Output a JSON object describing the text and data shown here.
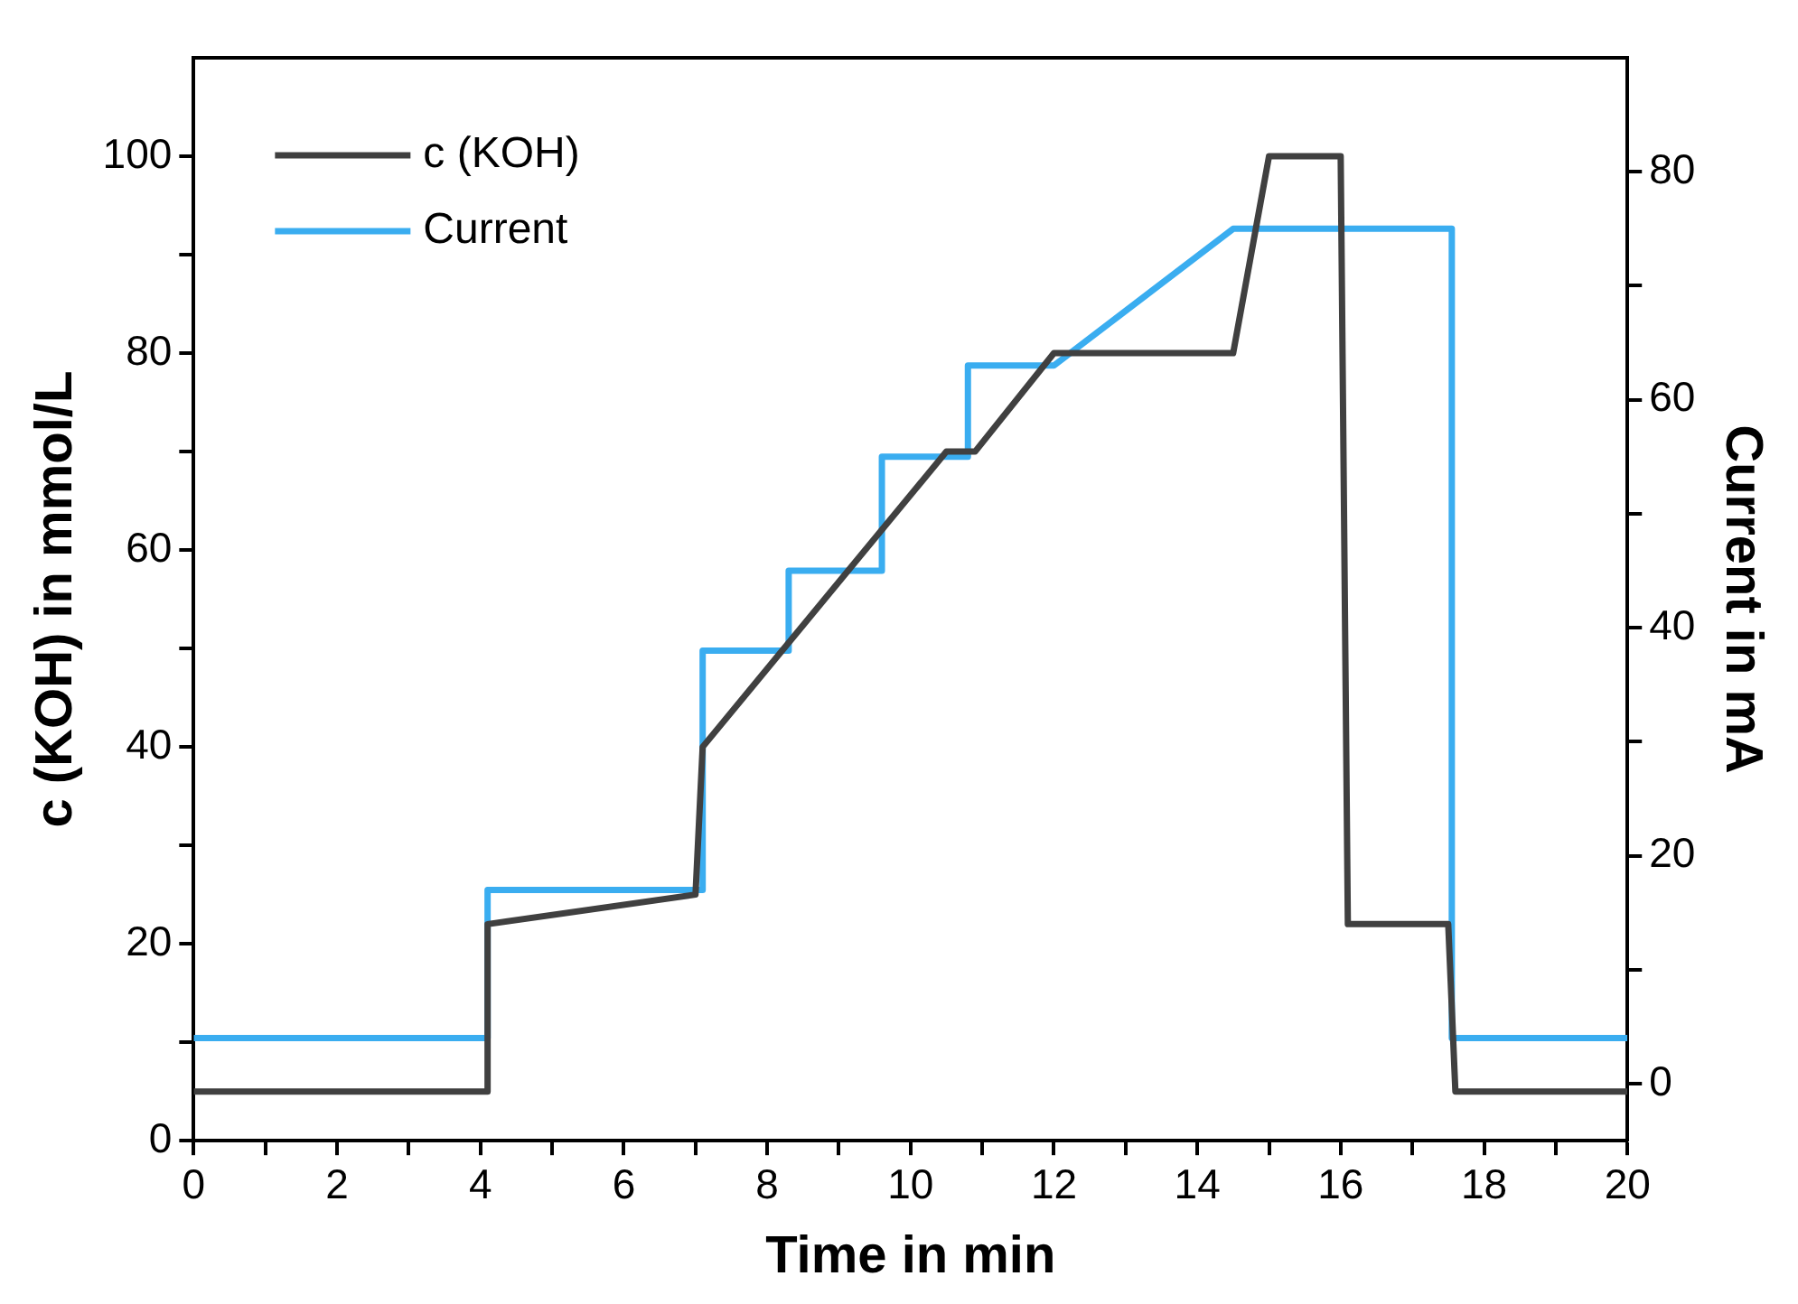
{
  "chart_data": {
    "type": "line",
    "xlabel": "Time in min",
    "ylabel": "c (KOH) in mmol/L",
    "y2label": "Current in mA",
    "xlim": [
      0,
      20
    ],
    "xticks": [
      0,
      {
        "value": 1,
        "label": null
      },
      2,
      {
        "value": 3,
        "label": null
      },
      4,
      {
        "value": 5,
        "label": null
      },
      6,
      {
        "value": 7,
        "label": null
      },
      8,
      {
        "value": 9,
        "label": null
      },
      10,
      {
        "value": 11,
        "label": null
      },
      12,
      {
        "value": 13,
        "label": null
      },
      14,
      {
        "value": 15,
        "label": null
      },
      16,
      {
        "value": 17,
        "label": null
      },
      18,
      {
        "value": 19,
        "label": null
      },
      20
    ],
    "ylim": [
      0,
      110
    ],
    "yticks": [
      0,
      {
        "value": 10,
        "label": null
      },
      20,
      {
        "value": 30,
        "label": null
      },
      40,
      {
        "value": 50,
        "label": null
      },
      60,
      {
        "value": 70,
        "label": null
      },
      80,
      {
        "value": 90,
        "label": null
      },
      100
    ],
    "y2lim": [
      -5,
      90
    ],
    "y2ticks": [
      0,
      {
        "value": 10,
        "label": null
      },
      20,
      {
        "value": 30,
        "label": null
      },
      40,
      {
        "value": 50,
        "label": null
      },
      60,
      {
        "value": 70,
        "label": null
      },
      80
    ],
    "grid": false,
    "legend": "top left",
    "marker": "none",
    "line_style": "solid",
    "series": [
      {
        "name": "c (KOH)",
        "color": "#404040",
        "x": [
          0,
          4.1,
          4.1,
          7,
          7.1,
          10.5,
          10.9,
          12,
          14.5,
          15,
          16,
          16.1,
          17.5,
          17.6,
          20
        ],
        "values": [
          5,
          5,
          22,
          25,
          40,
          70,
          70,
          80,
          80,
          100,
          100,
          22,
          22,
          5,
          5
        ]
      },
      {
        "name": "Current",
        "color": "#3aadf0",
        "axis": "y2",
        "x": [
          0,
          4.1,
          4.1,
          7.1,
          7.1,
          8.3,
          8.3,
          9.6,
          9.6,
          10.8,
          10.8,
          12,
          14.5,
          17.55,
          17.55,
          20
        ],
        "values": [
          4,
          4,
          17,
          17,
          38,
          38,
          45,
          45,
          55,
          55,
          63,
          63,
          75,
          75,
          4,
          4
        ]
      }
    ]
  }
}
